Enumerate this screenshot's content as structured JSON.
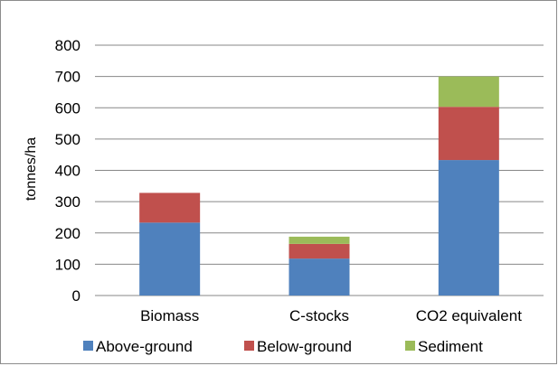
{
  "chart_data": {
    "type": "bar",
    "stacked": true,
    "categories": [
      "Biomass",
      "C-stocks",
      "CO2 equivalent"
    ],
    "series": [
      {
        "name": "Above-ground",
        "values": [
          233,
          118,
          433
        ],
        "color": "#4f81bd"
      },
      {
        "name": "Below-ground",
        "values": [
          95,
          47,
          170
        ],
        "color": "#c0504d"
      },
      {
        "name": "Sediment",
        "values": [
          0,
          23,
          97
        ],
        "color": "#9bbb59"
      }
    ],
    "ylabel": "tonnes/ha",
    "ylim": [
      0,
      800
    ],
    "yticks": [
      0,
      100,
      200,
      300,
      400,
      500,
      600,
      700,
      800
    ],
    "grid": true,
    "legend_position": "bottom"
  }
}
